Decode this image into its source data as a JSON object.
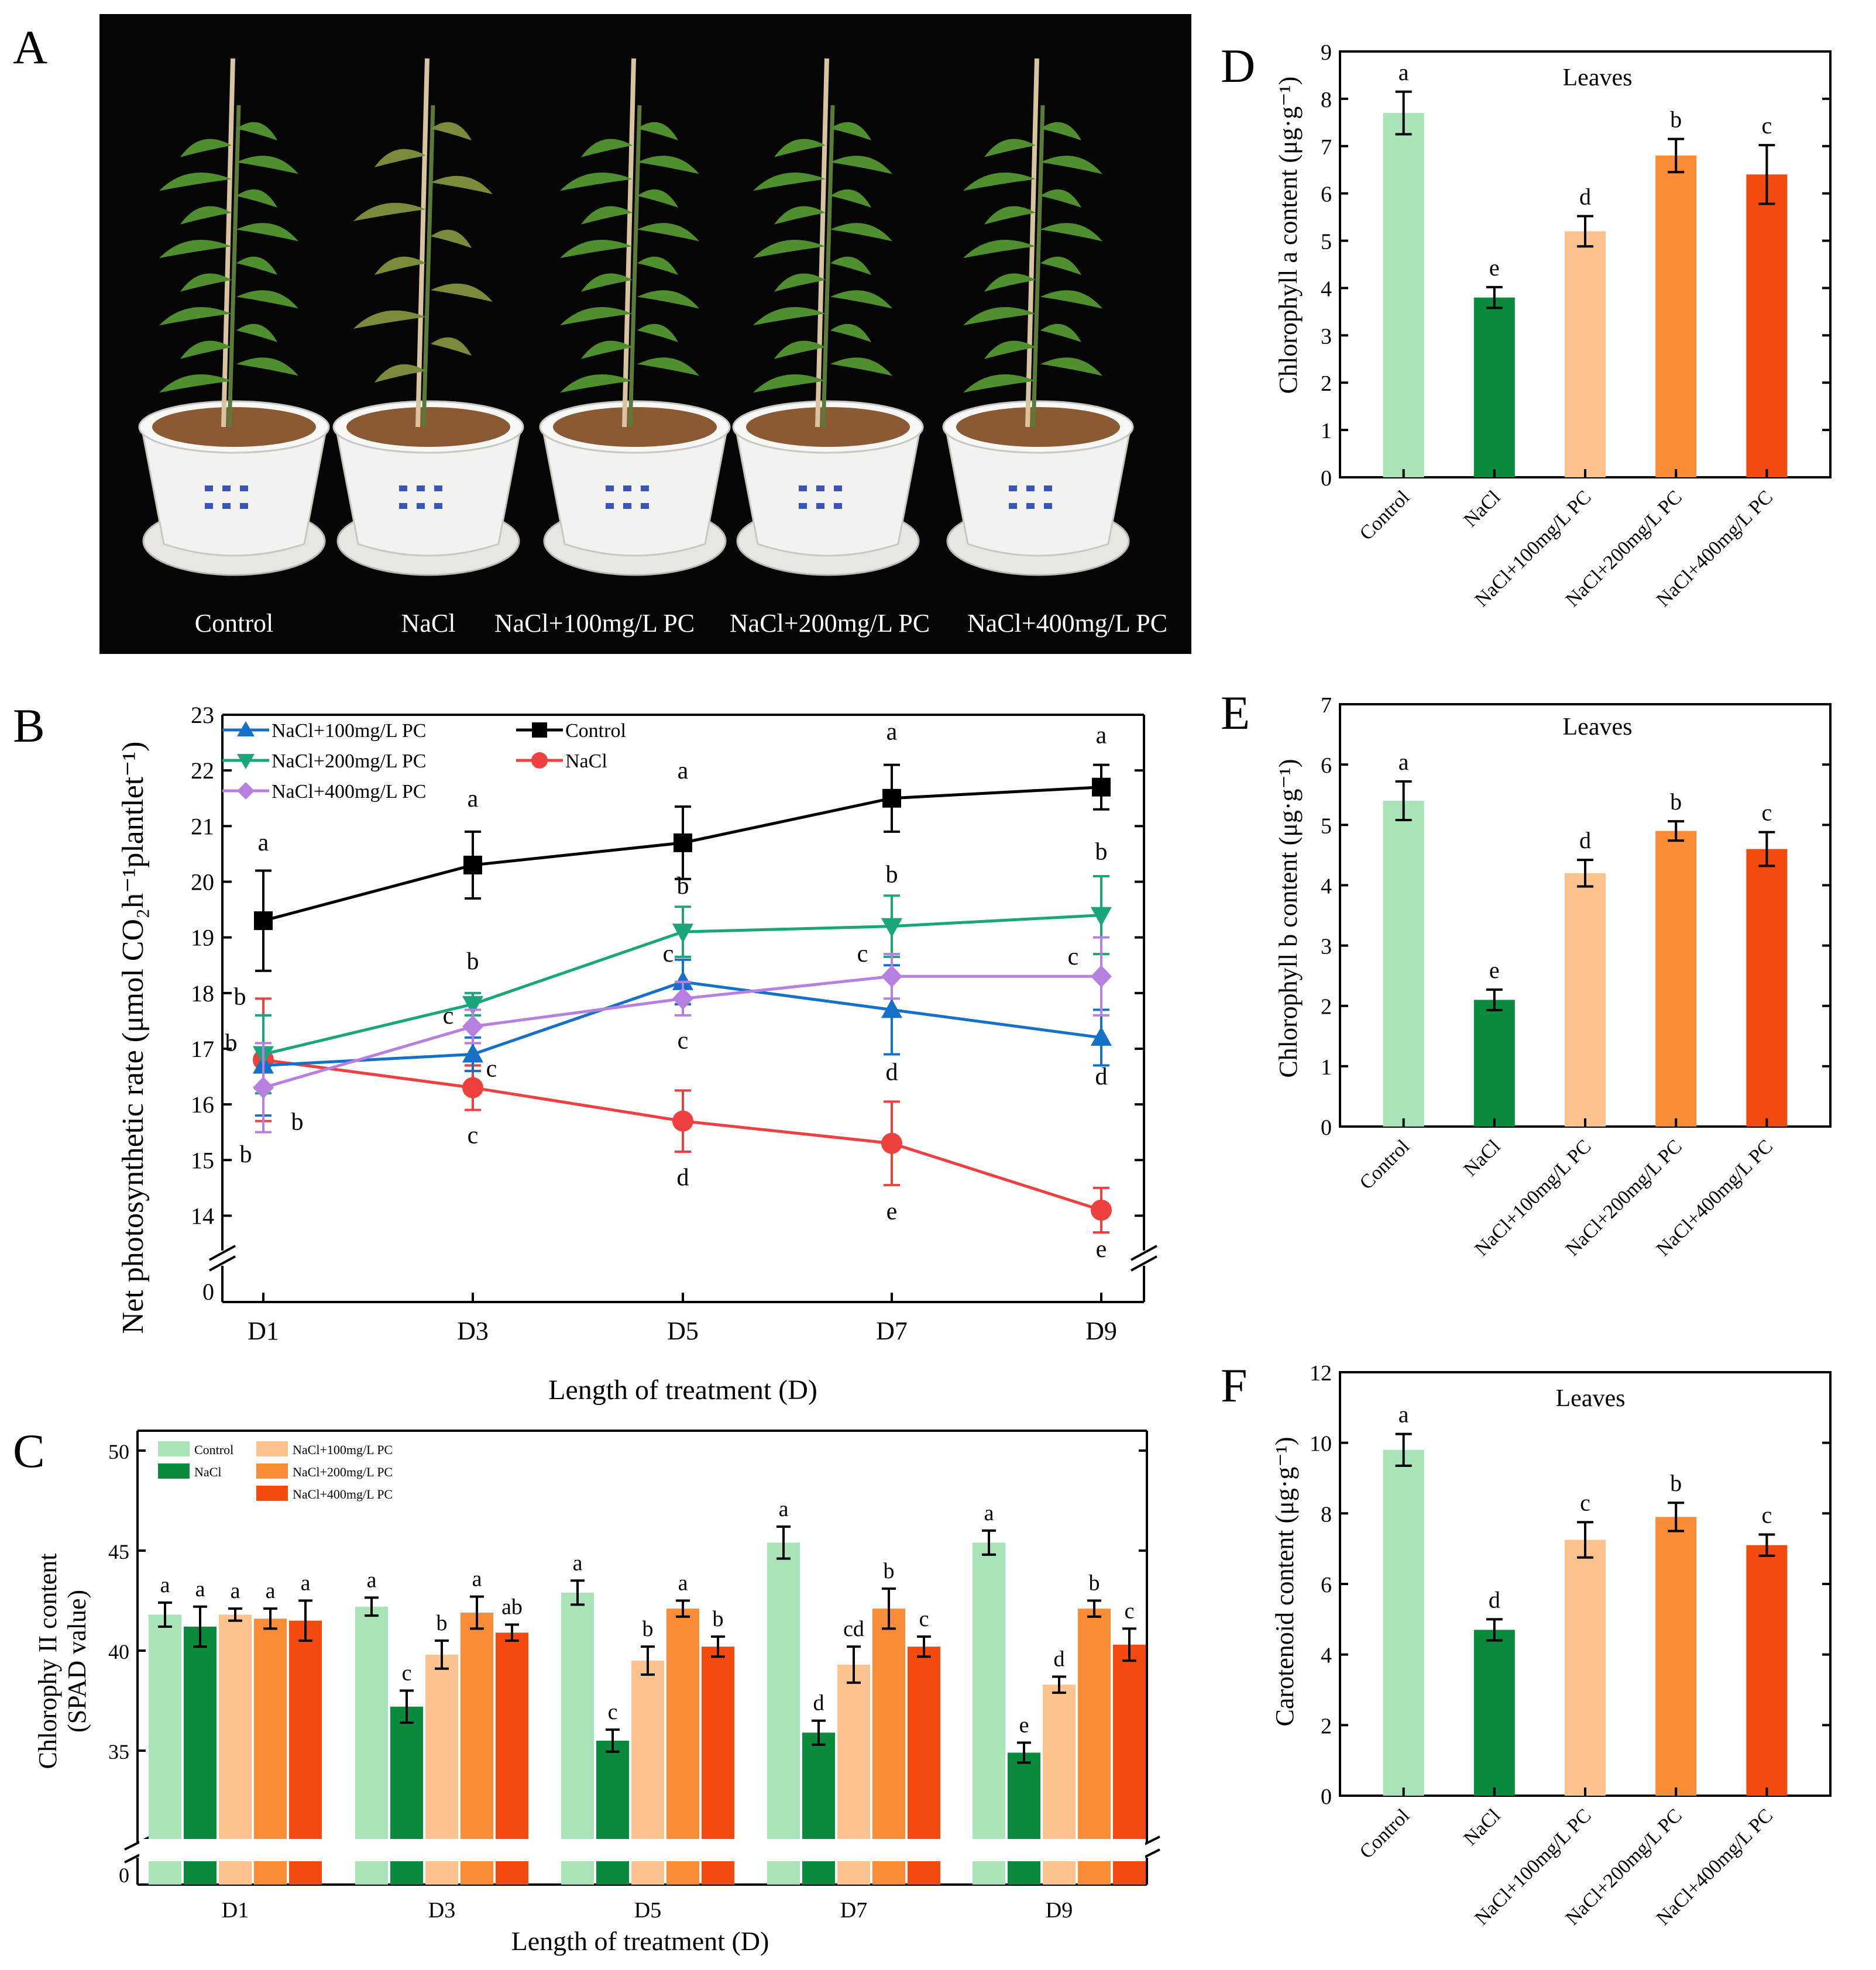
{
  "colors": {
    "control": "#a8e4b8",
    "nacl": "#0a8a3c",
    "pc100": "#fcc38e",
    "pc200": "#f98c36",
    "pc400": "#f54a0e",
    "line_control": "#000000",
    "line_nacl": "#ef4040",
    "line_pc100": "#1570c8",
    "line_pc200": "#1aa57a",
    "line_pc400": "#b780e0"
  },
  "panels": {
    "A": "A",
    "B": "B",
    "C": "C",
    "D": "D",
    "E": "E",
    "F": "F"
  },
  "photo": {
    "labels": [
      "Control",
      "NaCl",
      "NaCl+100mg/L PC",
      "NaCl+200mg/L PC",
      "NaCl+400mg/L PC"
    ]
  },
  "chart_data": [
    {
      "id": "B",
      "type": "line",
      "title": "",
      "xlabel": "Length of treatment (D)",
      "ylabel": "Net photosynthetic rate (μmol CO₂h⁻¹plantlet⁻¹)",
      "x": [
        "D1",
        "D3",
        "D5",
        "D7",
        "D9"
      ],
      "ylim": [
        13.5,
        23
      ],
      "yticks": [
        "14",
        "15",
        "16",
        "17",
        "18",
        "19",
        "20",
        "21",
        "22",
        "23"
      ],
      "ybreak_label": "0",
      "series": [
        {
          "name": "Control",
          "key": "control",
          "marker": "square",
          "values": [
            19.3,
            20.3,
            20.7,
            21.5,
            21.7
          ],
          "err": [
            0.9,
            0.6,
            0.65,
            0.6,
            0.4
          ],
          "letters": [
            "a",
            "a",
            "a",
            "a",
            "a"
          ]
        },
        {
          "name": "NaCl",
          "key": "nacl",
          "marker": "circle",
          "values": [
            16.8,
            16.3,
            15.7,
            15.3,
            14.1
          ],
          "err": [
            1.1,
            0.4,
            0.55,
            0.75,
            0.4
          ],
          "letters": [
            "b",
            "c",
            "d",
            "e",
            "e"
          ]
        },
        {
          "name": "NaCl+100mg/L PC",
          "key": "pc100",
          "marker": "triangle-up",
          "values": [
            16.7,
            16.9,
            18.2,
            17.7,
            17.2
          ],
          "err": [
            0.9,
            0.3,
            0.4,
            0.8,
            0.5
          ],
          "letters": [
            "b",
            "c",
            "c",
            "d",
            "d"
          ]
        },
        {
          "name": "NaCl+200mg/L PC",
          "key": "pc200",
          "marker": "triangle-down",
          "values": [
            16.9,
            17.8,
            19.1,
            19.2,
            19.4
          ],
          "err": [
            0.7,
            0.2,
            0.45,
            0.55,
            0.7
          ],
          "letters": [
            "b",
            "b",
            "b",
            "b",
            "b"
          ]
        },
        {
          "name": "NaCl+400mg/L PC",
          "key": "pc400",
          "marker": "diamond",
          "values": [
            16.3,
            17.4,
            17.9,
            18.3,
            18.3
          ],
          "err": [
            0.8,
            0.3,
            0.3,
            0.4,
            0.7
          ],
          "letters": [
            "b",
            "c",
            "c",
            "c",
            "c"
          ]
        }
      ],
      "legend": [
        "NaCl+100mg/L PC",
        "Control",
        "NaCl+200mg/L PC",
        "NaCl",
        "NaCl+400mg/L PC"
      ]
    },
    {
      "id": "C",
      "type": "bar",
      "xlabel": "Length of treatment (D)",
      "ylabel": "Chlorophy II content (SPAD value)",
      "ylabel_line1": "Chlorophy II content",
      "ylabel_line2": "(SPAD value)",
      "categories": [
        "D1",
        "D3",
        "D5",
        "D7",
        "D9"
      ],
      "ylim": [
        30,
        50
      ],
      "yticks": [
        "35",
        "40",
        "45",
        "50"
      ],
      "ybreak_label": "0",
      "series": [
        {
          "name": "Control",
          "key": "control",
          "values": [
            41.8,
            42.2,
            42.9,
            45.4,
            45.4
          ],
          "err": [
            0.6,
            0.45,
            0.6,
            0.8,
            0.6
          ],
          "letters": [
            "a",
            "a",
            "a",
            "a",
            "a"
          ]
        },
        {
          "name": "NaCl",
          "key": "nacl",
          "values": [
            41.2,
            37.2,
            35.5,
            35.9,
            34.9
          ],
          "err": [
            1.0,
            0.8,
            0.55,
            0.6,
            0.5
          ],
          "letters": [
            "a",
            "c",
            "c",
            "d",
            "e"
          ]
        },
        {
          "name": "NaCl+100mg/L PC",
          "key": "pc100",
          "values": [
            41.8,
            39.8,
            39.5,
            39.3,
            38.3
          ],
          "err": [
            0.3,
            0.7,
            0.7,
            0.9,
            0.4
          ],
          "letters": [
            "a",
            "b",
            "b",
            "cd",
            "d"
          ]
        },
        {
          "name": "NaCl+200mg/L PC",
          "key": "pc200",
          "values": [
            41.6,
            41.9,
            42.1,
            42.1,
            42.1
          ],
          "err": [
            0.5,
            0.8,
            0.4,
            1.0,
            0.4
          ],
          "letters": [
            "a",
            "a",
            "a",
            "b",
            "b"
          ]
        },
        {
          "name": "NaCl+400mg/L PC",
          "key": "pc400",
          "values": [
            41.5,
            40.9,
            40.2,
            40.2,
            40.3
          ],
          "err": [
            1.0,
            0.4,
            0.5,
            0.5,
            0.8
          ],
          "letters": [
            "a",
            "ab",
            "b",
            "c",
            "c"
          ]
        }
      ]
    },
    {
      "id": "D",
      "type": "bar",
      "title": "Leaves",
      "ylabel": "Chlorophyll a content (μg·g⁻¹)",
      "categories": [
        "Control",
        "NaCl",
        "NaCl+100mg/L PC",
        "NaCl+200mg/L PC",
        "NaCl+400mg/L PC"
      ],
      "keys": [
        "control",
        "nacl",
        "pc100",
        "pc200",
        "pc400"
      ],
      "ylim": [
        0,
        9
      ],
      "yticks": [
        "0",
        "1",
        "2",
        "3",
        "4",
        "5",
        "6",
        "7",
        "8",
        "9"
      ],
      "values": [
        7.7,
        3.8,
        5.2,
        6.8,
        6.4
      ],
      "err": [
        0.45,
        0.22,
        0.32,
        0.35,
        0.62
      ],
      "letters": [
        "a",
        "e",
        "d",
        "b",
        "c"
      ]
    },
    {
      "id": "E",
      "type": "bar",
      "title": "Leaves",
      "ylabel": "Chlorophyll b content (μg·g⁻¹)",
      "categories": [
        "Control",
        "NaCl",
        "NaCl+100mg/L PC",
        "NaCl+200mg/L PC",
        "NaCl+400mg/L PC"
      ],
      "keys": [
        "control",
        "nacl",
        "pc100",
        "pc200",
        "pc400"
      ],
      "ylim": [
        0,
        7
      ],
      "yticks": [
        "0",
        "1",
        "2",
        "3",
        "4",
        "5",
        "6",
        "7"
      ],
      "values": [
        5.4,
        2.1,
        4.2,
        4.9,
        4.6
      ],
      "err": [
        0.32,
        0.17,
        0.22,
        0.16,
        0.28
      ],
      "letters": [
        "a",
        "e",
        "d",
        "b",
        "c"
      ]
    },
    {
      "id": "F",
      "type": "bar",
      "title": "Leaves",
      "ylabel": "Carotenoid content (μg·g⁻¹)",
      "categories": [
        "Control",
        "NaCl",
        "NaCl+100mg/L PC",
        "NaCl+200mg/L PC",
        "NaCl+400mg/L PC"
      ],
      "keys": [
        "control",
        "nacl",
        "pc100",
        "pc200",
        "pc400"
      ],
      "ylim": [
        0,
        12
      ],
      "yticks": [
        "0",
        "2",
        "4",
        "6",
        "8",
        "10",
        "12"
      ],
      "values": [
        9.8,
        4.7,
        7.25,
        7.9,
        7.1
      ],
      "err": [
        0.45,
        0.3,
        0.5,
        0.4,
        0.3
      ],
      "letters": [
        "a",
        "d",
        "c",
        "b",
        "c"
      ]
    }
  ]
}
